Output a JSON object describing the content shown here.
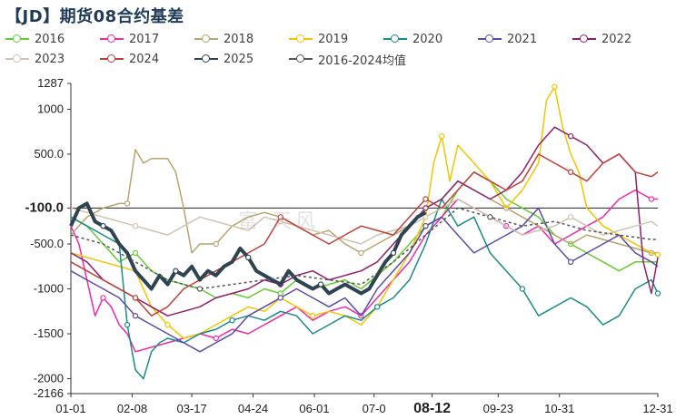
{
  "title": "【JD】期货08合约基差",
  "watermark": "富   天风",
  "chart_data": {
    "type": "line",
    "xlabel": "",
    "ylabel": "",
    "ylim": [
      -2166,
      1287
    ],
    "y_ticks": [
      {
        "value": 1287,
        "label": "1287"
      },
      {
        "value": 1000,
        "label": "1000"
      },
      {
        "value": 500,
        "label": "500.0"
      },
      {
        "value": -100,
        "label": "-100.0"
      },
      {
        "value": -500,
        "label": "-500.0"
      },
      {
        "value": -1000,
        "label": "-1000"
      },
      {
        "value": -1500,
        "label": "-1500"
      },
      {
        "value": -2000,
        "label": "-2000"
      },
      {
        "value": -2166,
        "label": "-2166"
      }
    ],
    "x_ticks": [
      {
        "day": 0,
        "label": "01-01"
      },
      {
        "day": 38,
        "label": "02-08"
      },
      {
        "day": 75,
        "label": "03-17"
      },
      {
        "day": 113,
        "label": "04-24"
      },
      {
        "day": 151,
        "label": "06-01"
      },
      {
        "day": 188,
        "label": "07-0"
      },
      {
        "day": 224,
        "label": "08-12"
      },
      {
        "day": 265,
        "label": "09-23"
      },
      {
        "day": 303,
        "label": "10-31"
      },
      {
        "day": 364,
        "label": "12-31"
      }
    ],
    "x_range": [
      0,
      364
    ],
    "legend_position": "top",
    "series": [
      {
        "name": "2016",
        "color": "#66cc33",
        "width": 1.5,
        "dash": "",
        "x": [
          0,
          10,
          20,
          30,
          40,
          50,
          60,
          70,
          80,
          90,
          100,
          110,
          120,
          130,
          140,
          150,
          160,
          170,
          180,
          190,
          200,
          210,
          220,
          230,
          240,
          250,
          260,
          270,
          280,
          290,
          300,
          310,
          320,
          330,
          340,
          350,
          360,
          364
        ],
        "y": [
          -200,
          -300,
          -500,
          -700,
          -600,
          -800,
          -900,
          -950,
          -1000,
          -1100,
          -1050,
          -1100,
          -1000,
          -1050,
          -900,
          -1000,
          -950,
          -900,
          -1000,
          -850,
          -700,
          -500,
          -300,
          -200,
          100,
          300,
          200,
          0,
          -100,
          -200,
          -400,
          -500,
          -600,
          -700,
          -800,
          -700,
          -700,
          -700
        ]
      },
      {
        "name": "2017",
        "color": "#ee2aa8",
        "width": 1.5,
        "dash": "",
        "x": [
          0,
          5,
          10,
          15,
          20,
          25,
          30,
          35,
          40,
          50,
          60,
          70,
          80,
          90,
          100,
          110,
          120,
          130,
          140,
          150,
          160,
          170,
          180,
          190,
          200,
          210,
          220,
          230,
          240,
          250,
          260,
          270,
          280,
          290,
          300,
          310,
          320,
          330,
          340,
          350,
          360,
          364
        ],
        "y": [
          -300,
          -500,
          -900,
          -1300,
          -1100,
          -1200,
          -1400,
          -1500,
          -1700,
          -1650,
          -1600,
          -1550,
          -1500,
          -1550,
          -1450,
          -1500,
          -1400,
          -1300,
          -1200,
          -1350,
          -1250,
          -1200,
          -1300,
          -1100,
          -900,
          -700,
          -400,
          -200,
          0,
          -100,
          -200,
          -300,
          -400,
          -300,
          -500,
          -400,
          -300,
          -200,
          0,
          100,
          0,
          0
        ]
      },
      {
        "name": "2018",
        "color": "#b8a46e",
        "width": 1.5,
        "dash": "",
        "x": [
          0,
          10,
          20,
          30,
          35,
          40,
          45,
          50,
          60,
          65,
          70,
          75,
          80,
          90,
          100,
          110,
          120,
          130,
          140,
          150,
          160,
          170,
          180,
          190,
          200,
          210,
          220,
          230,
          240,
          250,
          260,
          270,
          280,
          290,
          300,
          310,
          320,
          330,
          340,
          350,
          360,
          364
        ],
        "y": [
          -400,
          -200,
          -100,
          -50,
          -50,
          550,
          400,
          450,
          450,
          300,
          -100,
          -600,
          -500,
          -500,
          -300,
          -200,
          -150,
          -200,
          -300,
          -400,
          -350,
          -500,
          -600,
          -500,
          -400,
          -300,
          -100,
          0,
          200,
          100,
          0,
          -100,
          -200,
          -300,
          -400,
          -500,
          -400,
          -450,
          -500,
          -550,
          -600,
          -600
        ]
      },
      {
        "name": "2019",
        "color": "#f5c400",
        "width": 1.5,
        "dash": "",
        "x": [
          0,
          20,
          40,
          50,
          60,
          70,
          80,
          90,
          100,
          110,
          120,
          130,
          140,
          150,
          160,
          170,
          180,
          190,
          200,
          210,
          220,
          225,
          230,
          235,
          240,
          250,
          260,
          270,
          280,
          290,
          295,
          300,
          305,
          310,
          315,
          320,
          330,
          340,
          350,
          360,
          364
        ],
        "y": [
          -600,
          -700,
          -800,
          -1200,
          -1400,
          -1550,
          -1500,
          -1400,
          -1300,
          -1200,
          -1250,
          -1100,
          -1200,
          -1300,
          -1250,
          -1300,
          -1400,
          -1200,
          -900,
          -600,
          -200,
          400,
          700,
          200,
          600,
          400,
          200,
          -100,
          100,
          400,
          1100,
          1250,
          800,
          500,
          300,
          -100,
          -300,
          -400,
          -500,
          -600,
          -620
        ]
      },
      {
        "name": "2020",
        "color": "#1a8a8a",
        "width": 1.5,
        "dash": "",
        "x": [
          0,
          10,
          20,
          30,
          35,
          40,
          45,
          50,
          55,
          60,
          70,
          80,
          90,
          100,
          110,
          120,
          130,
          140,
          150,
          160,
          170,
          180,
          190,
          200,
          210,
          220,
          230,
          240,
          250,
          260,
          270,
          280,
          290,
          300,
          310,
          320,
          330,
          340,
          350,
          360,
          364
        ],
        "y": [
          -200,
          -300,
          -400,
          -500,
          -1400,
          -1900,
          -2000,
          -1700,
          -1600,
          -1550,
          -1600,
          -1500,
          -1450,
          -1350,
          -1300,
          -1350,
          -1250,
          -1300,
          -1500,
          -1400,
          -1300,
          -1350,
          -1200,
          -1100,
          -900,
          -500,
          0,
          -300,
          -200,
          -600,
          -800,
          -1000,
          -1300,
          -1200,
          -1100,
          -1200,
          -1400,
          -1300,
          -1000,
          -900,
          -1050
        ]
      },
      {
        "name": "2021",
        "color": "#5b4ba8",
        "width": 1.5,
        "dash": "",
        "x": [
          0,
          10,
          20,
          30,
          40,
          50,
          60,
          70,
          80,
          90,
          100,
          110,
          120,
          130,
          140,
          150,
          160,
          170,
          180,
          190,
          200,
          210,
          220,
          230,
          240,
          250,
          260,
          270,
          280,
          290,
          300,
          310,
          320,
          330,
          340,
          350,
          360,
          364
        ],
        "y": [
          -800,
          -900,
          -1000,
          -1100,
          -1300,
          -1400,
          -1500,
          -1600,
          -1700,
          -1600,
          -1500,
          -1300,
          -1200,
          -1100,
          -1000,
          -1100,
          -1200,
          -1100,
          -1300,
          -1000,
          -800,
          -600,
          -300,
          -200,
          -400,
          -600,
          -500,
          -400,
          -300,
          -100,
          -500,
          -700,
          -600,
          -500,
          -400,
          -600,
          -700,
          -750
        ]
      },
      {
        "name": "2022",
        "color": "#8e1f6d",
        "width": 1.5,
        "dash": "",
        "x": [
          0,
          10,
          20,
          30,
          40,
          50,
          60,
          70,
          80,
          90,
          100,
          110,
          120,
          130,
          140,
          150,
          160,
          170,
          180,
          190,
          200,
          210,
          220,
          230,
          240,
          250,
          260,
          270,
          280,
          290,
          300,
          310,
          320,
          330,
          340,
          350,
          355,
          360,
          364
        ],
        "y": [
          -600,
          -700,
          -900,
          -1000,
          -1100,
          -1200,
          -1300,
          -1250,
          -1200,
          -1100,
          -1050,
          -1000,
          -900,
          -950,
          -850,
          -800,
          -900,
          -850,
          -800,
          -700,
          -500,
          -300,
          -100,
          0,
          200,
          100,
          0,
          100,
          300,
          600,
          800,
          700,
          600,
          400,
          500,
          300,
          -700,
          -1050,
          -650
        ]
      },
      {
        "name": "2023",
        "color": "#cfc4b2",
        "width": 1.5,
        "dash": "",
        "x": [
          0,
          10,
          20,
          30,
          40,
          50,
          60,
          70,
          80,
          90,
          100,
          110,
          120,
          130,
          140,
          150,
          160,
          170,
          180,
          190,
          200,
          210,
          220,
          230,
          240,
          250,
          260,
          270,
          280,
          290,
          300,
          310,
          320,
          330,
          340,
          350,
          360,
          364
        ],
        "y": [
          -100,
          -150,
          -200,
          -250,
          -300,
          -350,
          -400,
          -300,
          -200,
          -250,
          -300,
          -350,
          -200,
          -250,
          -300,
          -350,
          -400,
          -450,
          -500,
          -400,
          -350,
          -300,
          -200,
          -100,
          0,
          -100,
          -200,
          -300,
          -400,
          -350,
          -300,
          -200,
          -300,
          -400,
          -350,
          -300,
          -250,
          -300
        ]
      },
      {
        "name": "2024",
        "color": "#c0413a",
        "width": 1.5,
        "dash": "",
        "x": [
          0,
          10,
          20,
          30,
          40,
          50,
          60,
          70,
          80,
          90,
          100,
          110,
          120,
          130,
          140,
          150,
          160,
          170,
          180,
          190,
          200,
          210,
          220,
          230,
          240,
          250,
          260,
          270,
          280,
          290,
          300,
          310,
          320,
          330,
          340,
          350,
          360,
          364
        ],
        "y": [
          -700,
          -800,
          -900,
          -1000,
          -1100,
          -1300,
          -1200,
          -1000,
          -900,
          -800,
          -700,
          -600,
          -500,
          -200,
          -300,
          -400,
          -500,
          -400,
          -300,
          -350,
          -400,
          -200,
          0,
          -100,
          100,
          300,
          200,
          100,
          200,
          500,
          400,
          300,
          200,
          400,
          500,
          300,
          250,
          300
        ]
      },
      {
        "name": "2025",
        "color": "#2e4453",
        "width": 4,
        "dash": "",
        "x": [
          0,
          5,
          10,
          15,
          20,
          25,
          30,
          35,
          40,
          45,
          50,
          55,
          60,
          65,
          70,
          75,
          80,
          85,
          90,
          95,
          100,
          105,
          110,
          115,
          120,
          125,
          130,
          135,
          140,
          145,
          150,
          155,
          160,
          165,
          170,
          175,
          180,
          185,
          190,
          195,
          200,
          205,
          210,
          215,
          220
        ],
        "y": [
          -300,
          -100,
          -50,
          -250,
          -300,
          -350,
          -500,
          -600,
          -800,
          -900,
          -1000,
          -850,
          -950,
          -800,
          -850,
          -750,
          -900,
          -800,
          -850,
          -750,
          -700,
          -550,
          -650,
          -800,
          -850,
          -900,
          -950,
          -800,
          -900,
          -950,
          -1000,
          -950,
          -1050,
          -1000,
          -950,
          -1000,
          -1050,
          -1000,
          -850,
          -700,
          -600,
          -400,
          -300,
          -200,
          -150
        ]
      },
      {
        "name": "2016-2024均值",
        "color": "#555555",
        "width": 1.5,
        "dash": "3,3",
        "x": [
          0,
          20,
          40,
          60,
          80,
          100,
          120,
          140,
          160,
          180,
          200,
          220,
          240,
          260,
          280,
          300,
          320,
          340,
          360,
          364
        ],
        "y": [
          -400,
          -500,
          -700,
          -900,
          -1000,
          -950,
          -900,
          -850,
          -900,
          -950,
          -700,
          -400,
          -100,
          -200,
          -300,
          -250,
          -350,
          -400,
          -450,
          -450
        ]
      }
    ]
  }
}
